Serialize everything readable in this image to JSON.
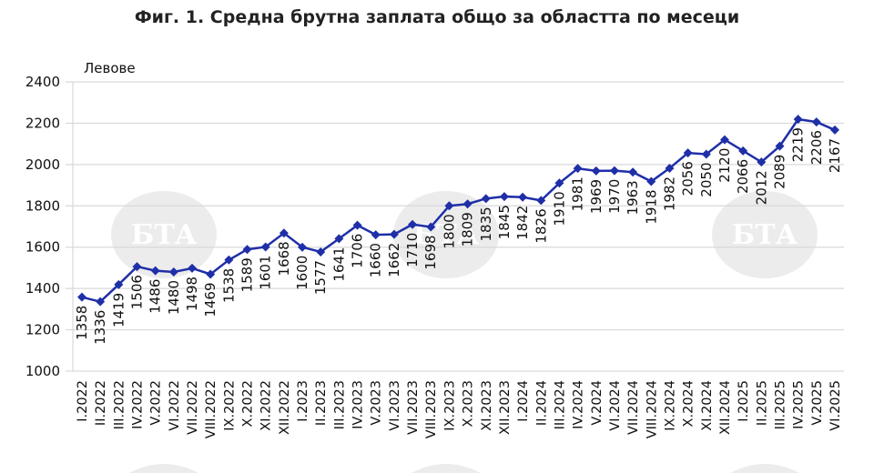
{
  "chart_data": {
    "type": "line",
    "title": "Фиг. 1. Средна брутна заплата общо за областта по месеци",
    "ylabel": "Левове",
    "xlabel": "",
    "ylim": [
      1000,
      2400
    ],
    "yticks": [
      1000,
      1200,
      1400,
      1600,
      1800,
      2000,
      2200,
      2400
    ],
    "grid": true,
    "legend": "none",
    "categories": [
      "I.2022",
      "II.2022",
      "III.2022",
      "IV.2022",
      "V.2022",
      "VI.2022",
      "VII.2022",
      "VIII.2022",
      "IX.2022",
      "X.2022",
      "XI.2022",
      "XII.2022",
      "I.2023",
      "II.2023",
      "III.2023",
      "IV.2023",
      "V.2023",
      "VI.2023",
      "VII.2023",
      "VIII.2023",
      "IX.2023",
      "X.2023",
      "XI.2023",
      "XII.2023",
      "I.2024",
      "II.2024",
      "III.2024",
      "IV.2024",
      "V.2024",
      "VI.2024",
      "VII.2024",
      "VIII.2024",
      "IX.2024",
      "X.2024",
      "XI.2024",
      "XII.2024",
      "I.2025",
      "II.2025",
      "III.2025",
      "IV.2025",
      "V.2025",
      "VI.2025"
    ],
    "series": [
      {
        "name": "Средна брутна заплата",
        "color": "#1f2fa8",
        "values": [
          1358,
          1336,
          1419,
          1506,
          1486,
          1480,
          1498,
          1469,
          1538,
          1589,
          1601,
          1668,
          1600,
          1577,
          1641,
          1706,
          1660,
          1662,
          1710,
          1698,
          1800,
          1809,
          1835,
          1845,
          1842,
          1826,
          1910,
          1981,
          1969,
          1970,
          1963,
          1918,
          1982,
          2056,
          2050,
          2120,
          2066,
          2012,
          2089,
          2219,
          2206,
          2167
        ]
      }
    ]
  },
  "watermark": "БТА"
}
